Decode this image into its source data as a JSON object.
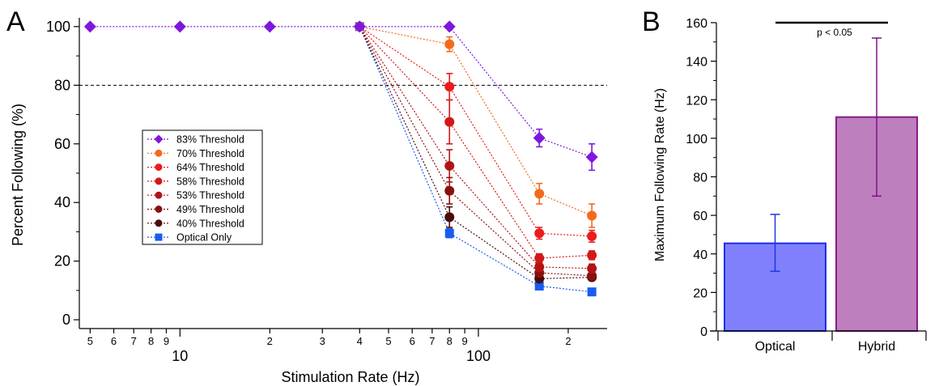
{
  "panels": {
    "a_letter": "A",
    "b_letter": "B"
  },
  "chart_data": [
    {
      "type": "line",
      "panel": "A",
      "xlabel": "Stimulation Rate (Hz)",
      "ylabel": "Percent Following (%)",
      "x_scale": "log",
      "xlim": [
        4.6,
        270
      ],
      "ylim": [
        -3,
        103
      ],
      "x_ticks": [
        5,
        6,
        7,
        8,
        9,
        10,
        20,
        30,
        40,
        50,
        60,
        70,
        80,
        90,
        100,
        200
      ],
      "x_tick_labels": [
        "5",
        "6",
        "7",
        "8",
        "9",
        "10",
        "2",
        "3",
        "4",
        "5",
        "6",
        "7",
        "8",
        "9",
        "100",
        "2"
      ],
      "y_ticks": [
        0,
        20,
        40,
        60,
        80,
        100
      ],
      "y_tick_labels": [
        "0",
        "20",
        "40",
        "60",
        "80",
        "100"
      ],
      "reference_line": 80,
      "legend_position": "left-center",
      "x": [
        5,
        10,
        20,
        40,
        80,
        160,
        240
      ],
      "series": [
        {
          "name": "83% Threshold",
          "color": "#7f16df",
          "marker": "diamond",
          "x": [
            5,
            10,
            20,
            40,
            80,
            160,
            240
          ],
          "values": [
            100,
            100,
            100,
            100,
            100,
            62,
            55.5
          ],
          "err": [
            0,
            0,
            0,
            0,
            0,
            3,
            4.5
          ]
        },
        {
          "name": "70% Threshold",
          "color": "#f26b1d",
          "marker": "circle",
          "x": [
            40,
            80,
            160,
            240
          ],
          "values": [
            100,
            94,
            43,
            35.5
          ],
          "err": [
            0,
            2.5,
            3.5,
            4
          ]
        },
        {
          "name": "64% Threshold",
          "color": "#ea1c1c",
          "marker": "circle",
          "x": [
            40,
            80,
            160,
            240
          ],
          "values": [
            100,
            79.5,
            29.5,
            28.5
          ],
          "err": [
            0,
            4.5,
            2,
            2
          ]
        },
        {
          "name": "58% Threshold",
          "color": "#d31818",
          "marker": "circle",
          "x": [
            40,
            80,
            160,
            240
          ],
          "values": [
            100,
            67.5,
            21,
            22
          ],
          "err": [
            0,
            7.5,
            1.5,
            1.5
          ]
        },
        {
          "name": "53% Threshold",
          "color": "#b01515",
          "marker": "circle",
          "x": [
            40,
            80,
            160,
            240
          ],
          "values": [
            100,
            52.5,
            18,
            17.5
          ],
          "err": [
            0,
            5.5,
            1.5,
            1.5
          ]
        },
        {
          "name": "49% Threshold",
          "color": "#8a1010",
          "marker": "circle",
          "x": [
            40,
            80,
            160,
            240
          ],
          "values": [
            100,
            44,
            16,
            15
          ],
          "err": [
            0,
            4.5,
            1,
            1
          ]
        },
        {
          "name": "40% Threshold",
          "color": "#4a0b0b",
          "marker": "circle",
          "x": [
            40,
            80,
            160,
            240
          ],
          "values": [
            100,
            35,
            14,
            14.5
          ],
          "err": [
            0,
            3.5,
            1,
            1
          ]
        },
        {
          "name": "Optical Only",
          "color": "#1a5cf0",
          "marker": "square",
          "x": [
            40,
            80,
            160,
            240
          ],
          "values": [
            100,
            29.5,
            11.5,
            9.5
          ],
          "err": [
            0,
            1.5,
            1,
            0.8
          ]
        }
      ]
    },
    {
      "type": "bar",
      "panel": "B",
      "ylabel": "Maximum Following Rate (Hz)",
      "xlabel": "",
      "ylim": [
        0,
        160
      ],
      "y_ticks": [
        0,
        20,
        40,
        60,
        80,
        100,
        120,
        140,
        160
      ],
      "y_tick_labels": [
        "0",
        "20",
        "40",
        "60",
        "80",
        "100",
        "120",
        "140",
        "160"
      ],
      "categories": [
        "Optical",
        "Hybrid"
      ],
      "values": [
        45.5,
        111
      ],
      "err_low": [
        31,
        70
      ],
      "err_high": [
        60.5,
        152
      ],
      "fill_colors": [
        "#8080fc",
        "#bd7fbd"
      ],
      "edge_colors": [
        "#1d2ee6",
        "#8a1a8a"
      ],
      "errbar_colors": [
        "#1a36e6",
        "#80108a"
      ],
      "significance_label": "p < 0.05"
    }
  ]
}
